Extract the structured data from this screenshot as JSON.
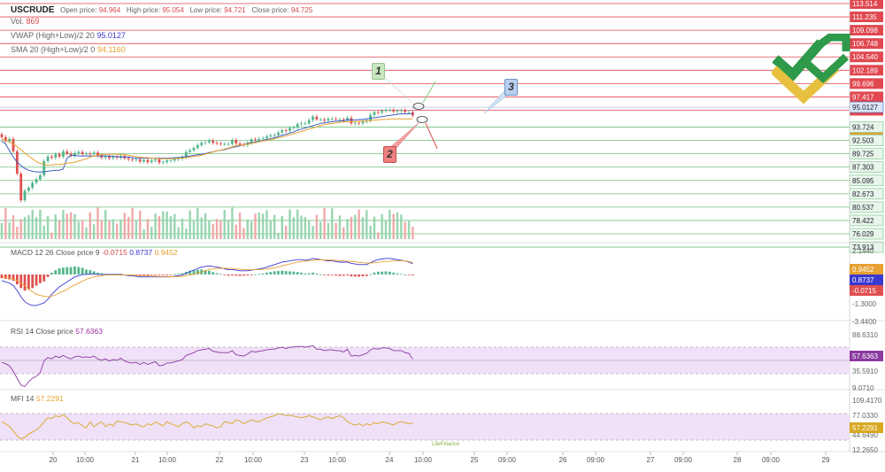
{
  "header": {
    "symbol": "USCRUDE",
    "open_label": "Open price:",
    "open_value": "94.964",
    "high_label": "High price:",
    "high_value": "95.054",
    "low_label": "Low price:",
    "low_value": "94.721",
    "close_label": "Close price:",
    "close_value": "94.725",
    "vol_label": "Vol.",
    "vol_value": "869",
    "vwap_label": "VWAP (High+Low)/2 20",
    "vwap_value": "95.0127",
    "sma_label": "SMA 20 (High+Low)/2 0",
    "sma_value": "94.1160"
  },
  "panes": {
    "macd_label": "MACD 12 26 Close price 9",
    "macd_v1": "-0.0715",
    "macd_v2": "0.8737",
    "macd_v3": "0.9452",
    "rsi_label": "RSI 14 Close price",
    "rsi_value": "57.6363",
    "mfi_label": "MFI 14",
    "mfi_value": "57.2291"
  },
  "markers": {
    "m1": "1",
    "m2": "2",
    "m3": "3"
  },
  "watermark": "LiteFinance",
  "colors": {
    "up": "#52b58a",
    "down": "#e05050",
    "red_line": "#e04850",
    "green_line": "#70c080",
    "vwap": "#3a5fc0",
    "sma": "#e8a030",
    "macd_line": "#3a3ad0",
    "signal_line": "#e8a030",
    "rsi": "#8a3aa0",
    "mfi": "#d8a820",
    "band": "#f0e0f8"
  },
  "chart_data": [
    {
      "type": "candlestick",
      "title": "USCRUDE",
      "price_levels_red": [
        "113.514",
        "111.235",
        "109.098",
        "106.748",
        "104.540",
        "102.189",
        "99.696",
        "97.417",
        "94.995"
      ],
      "price_levels_green": [
        "93.724",
        "92.503",
        "89.725",
        "87.303",
        "85.095",
        "82.673",
        "80.537",
        "78.422",
        "76.029",
        "73.913"
      ],
      "current_vwap": "95.0127",
      "current_sma": "94.1160",
      "ylim": [
        73.0,
        114.5
      ],
      "x_ticks": [
        "20",
        "10:00",
        "21",
        "10:00",
        "22",
        "10:00",
        "23",
        "10:00",
        "24",
        "10:00",
        "25",
        "09:00",
        "26",
        "09:00",
        "27",
        "09:00",
        "28",
        "09:00",
        "29"
      ],
      "close": [
        90.9,
        90.2,
        90.6,
        88.4,
        84.5,
        79.8,
        81.5,
        82.0,
        82.9,
        83.5,
        84.2,
        86.7,
        87.5,
        87.3,
        87.9,
        87.5,
        88.4,
        88.0,
        87.6,
        88.1,
        88.3,
        87.9,
        88.0,
        87.9,
        88.2,
        87.7,
        87.3,
        87.5,
        87.2,
        87.4,
        87.3,
        87.6,
        87.2,
        87.0,
        86.9,
        87.0,
        86.6,
        86.9,
        86.5,
        86.8,
        87.0,
        86.4,
        86.5,
        86.8,
        86.8,
        87.0,
        87.1,
        87.4,
        88.3,
        88.6,
        89.0,
        89.5,
        89.9,
        90.0,
        90.3,
        89.9,
        89.8,
        89.7,
        89.7,
        89.7,
        90.4,
        89.8,
        89.6,
        89.5,
        89.9,
        90.5,
        90.4,
        90.6,
        90.7,
        91.0,
        91.2,
        91.3,
        91.7,
        92.1,
        92.0,
        92.5,
        92.6,
        93.2,
        93.3,
        93.3,
        93.9,
        94.5,
        94.0,
        94.0,
        93.8,
        94.1,
        94.1,
        94.0,
        94.0,
        93.8,
        94.3,
        93.3,
        93.4,
        93.3,
        93.6,
        93.8,
        94.8,
        95.3,
        95.2,
        95.5,
        95.7,
        95.7,
        95.4,
        95.5,
        95.6,
        95.3,
        95.3,
        94.7
      ],
      "series": [
        {
          "name": "VWAP (High+Low)/2 20",
          "values": [
            90.2,
            89.7,
            88.5,
            87.4,
            86.5,
            85.9,
            85.4,
            85.1,
            84.9,
            84.8,
            84.8,
            84.8,
            84.9,
            85.0,
            85.1,
            85.1,
            85.3,
            87.2,
            87.7,
            87.7,
            87.6,
            87.6,
            87.6,
            87.6,
            87.6,
            87.6,
            87.6,
            87.6,
            87.6,
            87.5,
            87.5,
            87.4,
            87.4,
            87.4,
            87.3,
            87.2,
            87.2,
            87.2,
            87.2,
            87.2,
            87.2,
            87.2,
            87.2,
            87.2,
            87.2,
            87.3,
            87.3,
            87.4,
            87.5,
            87.6,
            87.7,
            87.8,
            87.9,
            88.0,
            88.2,
            88.3,
            88.5,
            88.6,
            88.7,
            88.9,
            89.1,
            89.2,
            89.4,
            89.6,
            89.8,
            89.9,
            90.0,
            90.2,
            90.3,
            90.5,
            90.6,
            90.8,
            91.0,
            91.2,
            91.4,
            91.6,
            91.8,
            92.1,
            92.3,
            92.5,
            92.7,
            92.9,
            93.1,
            93.3,
            93.4,
            93.5,
            93.6,
            93.7,
            93.7,
            93.8,
            93.9,
            93.9,
            93.9,
            94.0,
            94.0,
            94.1,
            94.2,
            94.3,
            94.4,
            94.5,
            94.6,
            94.7,
            94.8,
            94.9,
            95.0,
            95.0,
            95.0,
            95.0
          ]
        },
        {
          "name": "SMA 20 (High+Low)/2 0",
          "values": [
            90.6,
            90.4,
            90.1,
            89.7,
            89.2,
            88.7,
            88.1,
            87.6,
            87.1,
            86.6,
            86.3,
            86.1,
            86.0,
            86.0,
            86.1,
            86.1,
            86.2,
            86.3,
            86.4,
            86.5,
            86.7,
            86.9,
            87.1,
            87.4,
            87.6,
            87.7,
            87.8,
            87.9,
            87.9,
            87.9,
            87.9,
            87.8,
            87.8,
            87.7,
            87.6,
            87.5,
            87.4,
            87.3,
            87.3,
            87.2,
            87.2,
            87.1,
            87.1,
            87.1,
            87.1,
            87.1,
            87.2,
            87.2,
            87.3,
            87.4,
            87.5,
            87.6,
            87.7,
            87.9,
            88.1,
            88.3,
            88.5,
            88.6,
            88.8,
            89.0,
            89.2,
            89.4,
            89.5,
            89.6,
            89.7,
            89.8,
            89.9,
            90.1,
            90.2,
            90.3,
            90.5,
            90.6,
            90.8,
            90.9,
            91.1,
            91.3,
            91.5,
            91.7,
            91.9,
            92.1,
            92.3,
            92.5,
            92.7,
            92.9,
            93.1,
            93.2,
            93.3,
            93.4,
            93.5,
            93.6,
            93.6,
            93.6,
            93.6,
            93.7,
            93.7,
            93.8,
            93.8,
            93.9,
            93.9,
            94.0,
            94.0,
            94.1,
            94.1,
            94.1,
            94.1,
            94.1,
            94.1,
            94.1
          ]
        }
      ]
    },
    {
      "type": "macd",
      "label": "MACD 12 26 Close price 9",
      "y_ticks": [
        "2.1440",
        "-1.3000",
        "-3.4400"
      ],
      "ylim": [
        -3.44,
        2.144
      ],
      "macd": [
        -0.5,
        -0.6,
        -0.7,
        -0.9,
        -1.3,
        -1.8,
        -2.2,
        -2.4,
        -2.5,
        -2.5,
        -2.4,
        -2.3,
        -2.0,
        -1.6,
        -1.3,
        -1.0,
        -0.8,
        -0.6,
        -0.4,
        -0.2,
        -0.1,
        0.0,
        0.0,
        0.05,
        0.05,
        0.0,
        0.0,
        0.0,
        0.0,
        0.0,
        0.0,
        0.0,
        -0.05,
        -0.1,
        -0.1,
        -0.15,
        -0.2,
        -0.2,
        -0.2,
        -0.2,
        -0.2,
        -0.2,
        -0.2,
        -0.2,
        -0.2,
        -0.15,
        -0.1,
        -0.05,
        0.1,
        0.25,
        0.35,
        0.5,
        0.6,
        0.65,
        0.7,
        0.65,
        0.6,
        0.55,
        0.45,
        0.4,
        0.4,
        0.35,
        0.3,
        0.3,
        0.3,
        0.35,
        0.4,
        0.45,
        0.5,
        0.6,
        0.7,
        0.8,
        0.9,
        1.0,
        1.05,
        1.1,
        1.15,
        1.2,
        1.2,
        1.15,
        1.2,
        1.3,
        1.25,
        1.2,
        1.15,
        1.1,
        1.1,
        1.05,
        1.0,
        1.0,
        1.0,
        0.9,
        0.85,
        0.8,
        0.8,
        0.8,
        0.95,
        1.1,
        1.2,
        1.25,
        1.3,
        1.3,
        1.25,
        1.2,
        1.15,
        1.1,
        1.0,
        0.87
      ],
      "signal": [
        -0.2,
        -0.25,
        -0.3,
        -0.4,
        -0.5,
        -0.7,
        -0.9,
        -1.2,
        -1.4,
        -1.6,
        -1.7,
        -1.75,
        -1.8,
        -1.75,
        -1.65,
        -1.5,
        -1.35,
        -1.2,
        -1.0,
        -0.85,
        -0.7,
        -0.55,
        -0.4,
        -0.3,
        -0.2,
        -0.15,
        -0.1,
        -0.05,
        -0.05,
        -0.05,
        -0.05,
        -0.05,
        -0.05,
        -0.05,
        -0.05,
        -0.1,
        -0.1,
        -0.1,
        -0.12,
        -0.14,
        -0.15,
        -0.16,
        -0.17,
        -0.17,
        -0.18,
        -0.18,
        -0.17,
        -0.15,
        -0.1,
        -0.05,
        0.0,
        0.1,
        0.2,
        0.3,
        0.4,
        0.45,
        0.5,
        0.5,
        0.5,
        0.5,
        0.48,
        0.45,
        0.42,
        0.4,
        0.38,
        0.38,
        0.38,
        0.4,
        0.42,
        0.45,
        0.5,
        0.55,
        0.62,
        0.7,
        0.78,
        0.85,
        0.92,
        1.0,
        1.05,
        1.08,
        1.1,
        1.15,
        1.17,
        1.18,
        1.18,
        1.17,
        1.16,
        1.14,
        1.12,
        1.1,
        1.08,
        1.05,
        1.02,
        0.98,
        0.95,
        0.92,
        0.93,
        0.95,
        0.98,
        1.02,
        1.05,
        1.08,
        1.1,
        1.11,
        1.11,
        1.1,
        1.05,
        0.95
      ],
      "hist": [
        -0.3,
        -0.35,
        -0.4,
        -0.5,
        -0.8,
        -1.1,
        -1.3,
        -1.2,
        -1.1,
        -0.9,
        -0.7,
        -0.55,
        -0.2,
        0.15,
        0.35,
        0.5,
        0.55,
        0.6,
        0.6,
        0.65,
        0.6,
        0.55,
        0.4,
        0.35,
        0.25,
        0.15,
        0.1,
        0.05,
        0.05,
        0.05,
        0.05,
        0.05,
        0.0,
        -0.05,
        -0.05,
        -0.05,
        -0.1,
        -0.1,
        -0.08,
        -0.06,
        -0.05,
        -0.04,
        -0.03,
        -0.03,
        -0.02,
        0.03,
        0.07,
        0.1,
        0.2,
        0.3,
        0.35,
        0.4,
        0.4,
        0.35,
        0.3,
        0.2,
        0.1,
        0.05,
        -0.05,
        -0.1,
        -0.08,
        -0.1,
        -0.12,
        -0.1,
        -0.08,
        -0.03,
        0.02,
        0.05,
        0.08,
        0.15,
        0.2,
        0.25,
        0.28,
        0.3,
        0.27,
        0.25,
        0.23,
        0.2,
        0.15,
        0.07,
        0.1,
        0.15,
        0.08,
        0.02,
        -0.03,
        -0.07,
        -0.06,
        -0.09,
        -0.12,
        -0.1,
        -0.08,
        -0.15,
        -0.17,
        -0.18,
        -0.15,
        -0.12,
        0.02,
        0.15,
        0.22,
        0.23,
        0.25,
        0.22,
        0.15,
        0.09,
        0.04,
        0.0,
        -0.05,
        -0.07
      ]
    },
    {
      "type": "line",
      "label": "RSI 14 Close price",
      "y_ticks": [
        "88.6310",
        "35.5910",
        "9.0710"
      ],
      "ylim": [
        9.071,
        88.631
      ],
      "band": [
        35.591,
        75.0
      ],
      "values": [
        53,
        51,
        48,
        40,
        30,
        20,
        18,
        25,
        30,
        33,
        38,
        55,
        60,
        58,
        62,
        60,
        63,
        60,
        58,
        61,
        62,
        60,
        61,
        60,
        62,
        58,
        56,
        58,
        55,
        57,
        56,
        59,
        55,
        53,
        52,
        53,
        50,
        53,
        50,
        52,
        54,
        48,
        49,
        52,
        52,
        54,
        55,
        57,
        63,
        65,
        67,
        70,
        71,
        72,
        73,
        69,
        68,
        67,
        67,
        67,
        70,
        64,
        63,
        62,
        65,
        69,
        68,
        69,
        70,
        71,
        72,
        72,
        74,
        75,
        73,
        75,
        75,
        76,
        76,
        75,
        76,
        77,
        72,
        72,
        70,
        71,
        71,
        70,
        70,
        68,
        72,
        62,
        63,
        62,
        64,
        66,
        71,
        73,
        72,
        74,
        74,
        73,
        70,
        70,
        70,
        67,
        66,
        57.6363
      ]
    },
    {
      "type": "line",
      "label": "MFI 14",
      "y_ticks": [
        "109.4170",
        "77.0330",
        "44.6490",
        "12.2650"
      ],
      "ylim": [
        12.265,
        109.417
      ],
      "band": [
        44.649,
        77.033
      ],
      "values": [
        60,
        55,
        48,
        38,
        25,
        18,
        22,
        30,
        35,
        40,
        48,
        60,
        70,
        68,
        75,
        72,
        78,
        70,
        60,
        55,
        58,
        50,
        45,
        60,
        48,
        55,
        60,
        48,
        55,
        50,
        62,
        60,
        58,
        55,
        52,
        55,
        50,
        48,
        55,
        52,
        60,
        55,
        50,
        60,
        55,
        52,
        48,
        55,
        60,
        55,
        45,
        50,
        48,
        55,
        52,
        50,
        45,
        48,
        60,
        58,
        55,
        65,
        62,
        55,
        60,
        65,
        62,
        60,
        65,
        70,
        72,
        75,
        80,
        78,
        75,
        76,
        74,
        72,
        70,
        72,
        75,
        72,
        68,
        65,
        70,
        72,
        68,
        72,
        75,
        70,
        60,
        55,
        52,
        55,
        50,
        55,
        52,
        58,
        55,
        60,
        58,
        55,
        52,
        58,
        60,
        58,
        55,
        57.2291
      ]
    }
  ]
}
